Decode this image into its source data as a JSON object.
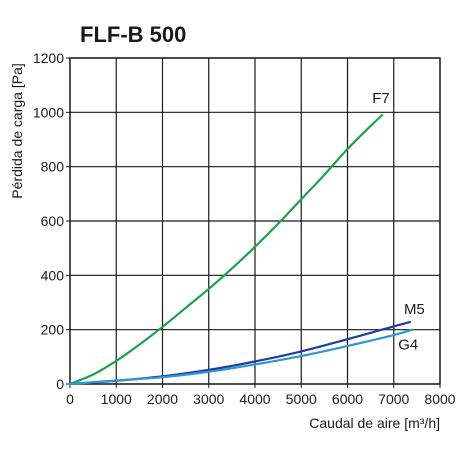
{
  "chart_data": {
    "type": "line",
    "title": "FLF-B 500",
    "xlabel": "Caudal de aire [m³/h]",
    "ylabel": "Pérdida de carga [Pa]",
    "xlim": [
      0,
      8000
    ],
    "ylim": [
      0,
      1200
    ],
    "x_ticks": [
      0,
      1000,
      2000,
      3000,
      4000,
      5000,
      6000,
      7000,
      8000
    ],
    "y_ticks": [
      0,
      200,
      400,
      600,
      800,
      1000,
      1200
    ],
    "grid": true,
    "legend": "inline labels at line ends",
    "series": [
      {
        "name": "F7",
        "color": "#1aa34a",
        "x": [
          0,
          500,
          1000,
          1500,
          2000,
          2500,
          3000,
          3500,
          4000,
          4500,
          5000,
          5500,
          6000,
          6500,
          6750
        ],
        "y": [
          0,
          35,
          85,
          145,
          210,
          280,
          350,
          425,
          505,
          590,
          680,
          770,
          865,
          950,
          990
        ]
      },
      {
        "name": "M5",
        "color": "#1f3f99",
        "x": [
          0,
          1000,
          2000,
          3000,
          4000,
          5000,
          6000,
          7000,
          7350
        ],
        "y": [
          0,
          12,
          28,
          52,
          83,
          120,
          165,
          212,
          228
        ]
      },
      {
        "name": "G4",
        "color": "#2a97d8",
        "x": [
          0,
          1000,
          2000,
          3000,
          4000,
          5000,
          6000,
          7000,
          7400
        ],
        "y": [
          0,
          13,
          25,
          45,
          72,
          103,
          140,
          180,
          200
        ]
      }
    ]
  }
}
